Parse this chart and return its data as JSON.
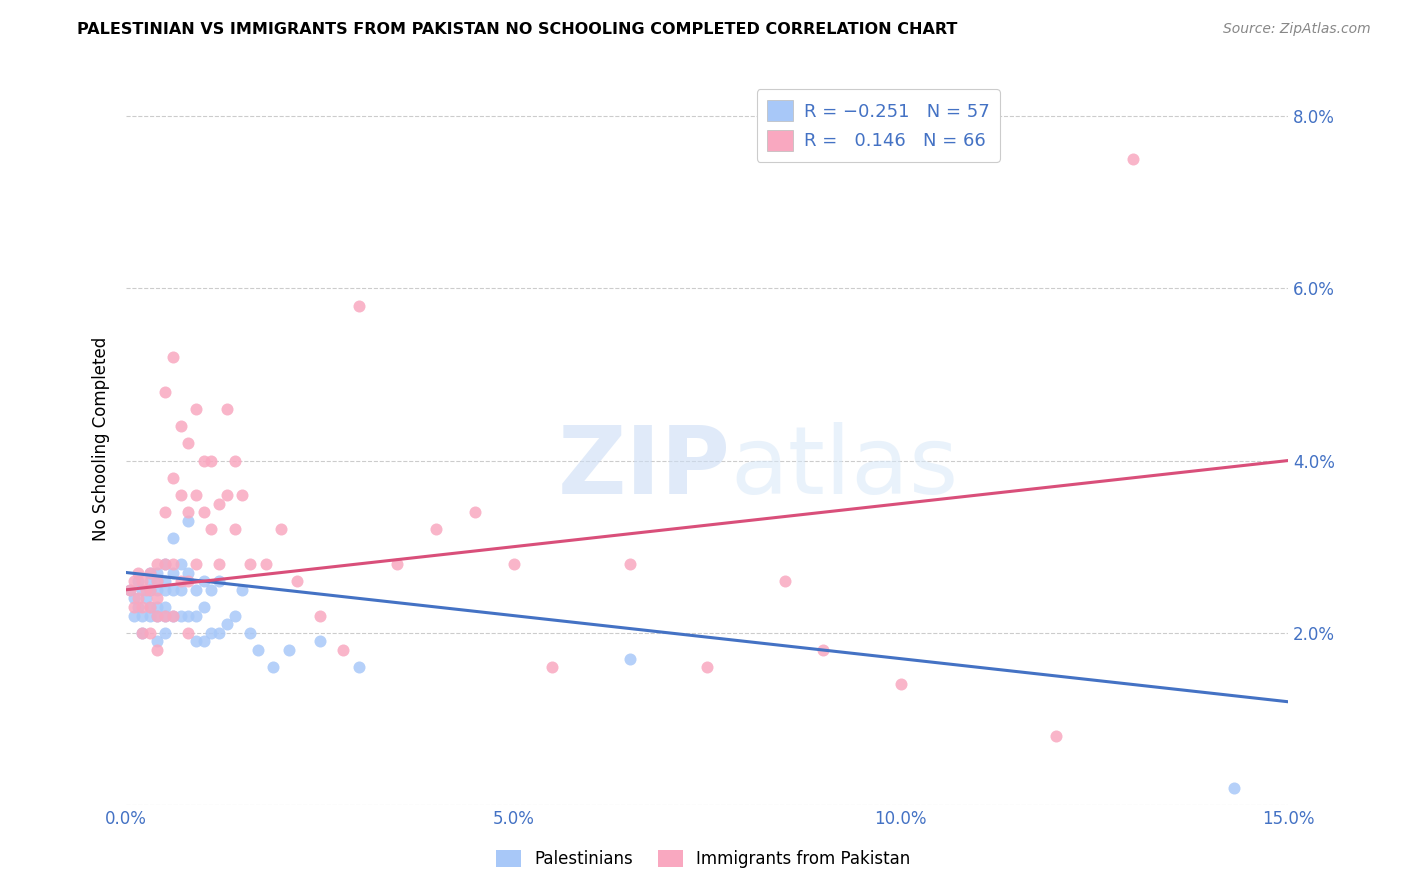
{
  "title": "PALESTINIAN VS IMMIGRANTS FROM PAKISTAN NO SCHOOLING COMPLETED CORRELATION CHART",
  "source": "Source: ZipAtlas.com",
  "ylabel": "No Schooling Completed",
  "xlim": [
    0.0,
    0.15
  ],
  "ylim": [
    0.0,
    0.085
  ],
  "xticks": [
    0.0,
    0.05,
    0.1,
    0.15
  ],
  "xticklabels": [
    "0.0%",
    "5.0%",
    "10.0%",
    "15.0%"
  ],
  "yticks": [
    0.0,
    0.02,
    0.04,
    0.06,
    0.08
  ],
  "yticklabels_right": [
    "",
    "2.0%",
    "4.0%",
    "6.0%",
    "8.0%"
  ],
  "blue_color": "#a8c8f8",
  "pink_color": "#f9a8c0",
  "blue_line_color": "#4472c4",
  "pink_line_color": "#d94f7a",
  "tick_label_color": "#4472c4",
  "blue_line_x": [
    0.0,
    0.15
  ],
  "blue_line_y": [
    0.027,
    0.012
  ],
  "pink_line_x": [
    0.0,
    0.15
  ],
  "pink_line_y": [
    0.025,
    0.04
  ],
  "watermark_zip": "ZIP",
  "watermark_atlas": "atlas",
  "blue_x": [
    0.0005,
    0.001,
    0.001,
    0.0015,
    0.0015,
    0.002,
    0.002,
    0.002,
    0.0025,
    0.003,
    0.003,
    0.003,
    0.003,
    0.003,
    0.004,
    0.004,
    0.004,
    0.004,
    0.004,
    0.004,
    0.005,
    0.005,
    0.005,
    0.005,
    0.005,
    0.005,
    0.006,
    0.006,
    0.006,
    0.006,
    0.007,
    0.007,
    0.007,
    0.008,
    0.008,
    0.008,
    0.009,
    0.009,
    0.009,
    0.01,
    0.01,
    0.01,
    0.011,
    0.011,
    0.012,
    0.012,
    0.013,
    0.014,
    0.015,
    0.016,
    0.017,
    0.019,
    0.021,
    0.025,
    0.03,
    0.065,
    0.143
  ],
  "blue_y": [
    0.025,
    0.024,
    0.022,
    0.026,
    0.023,
    0.025,
    0.022,
    0.02,
    0.024,
    0.027,
    0.026,
    0.025,
    0.023,
    0.022,
    0.027,
    0.026,
    0.025,
    0.023,
    0.022,
    0.019,
    0.028,
    0.026,
    0.025,
    0.023,
    0.022,
    0.02,
    0.031,
    0.027,
    0.025,
    0.022,
    0.028,
    0.025,
    0.022,
    0.033,
    0.027,
    0.022,
    0.025,
    0.022,
    0.019,
    0.026,
    0.023,
    0.019,
    0.025,
    0.02,
    0.026,
    0.02,
    0.021,
    0.022,
    0.025,
    0.02,
    0.018,
    0.016,
    0.018,
    0.019,
    0.016,
    0.017,
    0.002
  ],
  "pink_x": [
    0.0005,
    0.001,
    0.001,
    0.0015,
    0.0015,
    0.002,
    0.002,
    0.002,
    0.0025,
    0.003,
    0.003,
    0.003,
    0.003,
    0.004,
    0.004,
    0.004,
    0.004,
    0.004,
    0.005,
    0.005,
    0.005,
    0.005,
    0.006,
    0.006,
    0.006,
    0.006,
    0.007,
    0.007,
    0.007,
    0.008,
    0.008,
    0.008,
    0.008,
    0.009,
    0.009,
    0.009,
    0.01,
    0.01,
    0.011,
    0.011,
    0.012,
    0.012,
    0.013,
    0.013,
    0.014,
    0.014,
    0.015,
    0.016,
    0.018,
    0.02,
    0.022,
    0.025,
    0.028,
    0.03,
    0.035,
    0.04,
    0.045,
    0.05,
    0.055,
    0.065,
    0.075,
    0.085,
    0.09,
    0.1,
    0.12,
    0.13
  ],
  "pink_y": [
    0.025,
    0.026,
    0.023,
    0.027,
    0.024,
    0.026,
    0.023,
    0.02,
    0.025,
    0.027,
    0.025,
    0.023,
    0.02,
    0.028,
    0.026,
    0.024,
    0.022,
    0.018,
    0.048,
    0.034,
    0.028,
    0.022,
    0.052,
    0.038,
    0.028,
    0.022,
    0.044,
    0.036,
    0.026,
    0.042,
    0.034,
    0.026,
    0.02,
    0.046,
    0.036,
    0.028,
    0.04,
    0.034,
    0.04,
    0.032,
    0.035,
    0.028,
    0.046,
    0.036,
    0.04,
    0.032,
    0.036,
    0.028,
    0.028,
    0.032,
    0.026,
    0.022,
    0.018,
    0.058,
    0.028,
    0.032,
    0.034,
    0.028,
    0.016,
    0.028,
    0.016,
    0.026,
    0.018,
    0.014,
    0.008,
    0.075
  ],
  "bottom_legend": [
    {
      "label": "Palestinians",
      "color": "#a8c8f8"
    },
    {
      "label": "Immigrants from Pakistan",
      "color": "#f9a8c0"
    }
  ]
}
